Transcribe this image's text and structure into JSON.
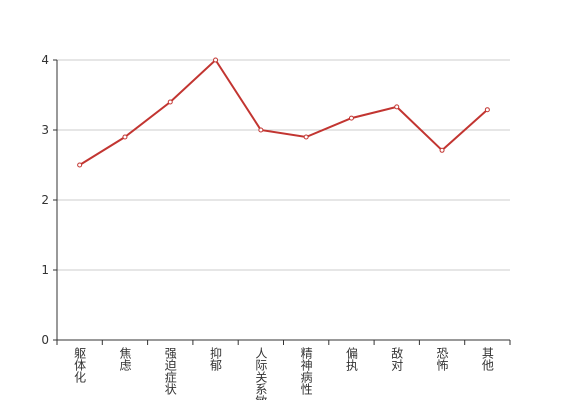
{
  "chart_data": {
    "type": "line",
    "categories": [
      "躯体化",
      "焦虑",
      "强迫症状",
      "抑郁",
      "人际关系敏感",
      "精神病性",
      "偏执",
      "敌对",
      "恐怖",
      "其他"
    ],
    "series": [
      {
        "color": "#c23531",
        "values": [
          2.5,
          2.9,
          3.4,
          4.0,
          3.0,
          2.9,
          3.17,
          3.33,
          2.71,
          3.29
        ]
      }
    ],
    "ylim": [
      0,
      4
    ],
    "yticks": [
      0,
      1,
      2,
      3,
      4
    ],
    "grid": true
  }
}
